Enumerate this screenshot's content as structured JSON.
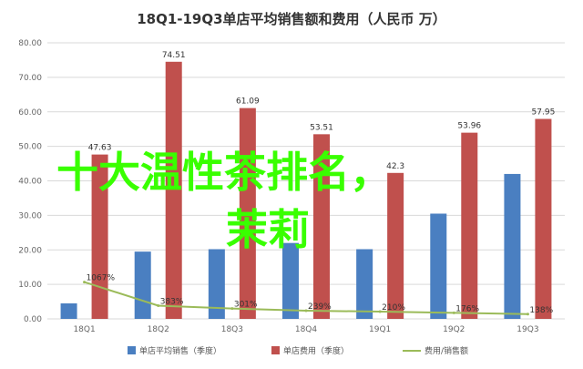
{
  "chart_data": {
    "type": "bar",
    "title": "18Q1-19Q3单店平均销售额和费用（人民币 万）",
    "categories": [
      "18Q1",
      "18Q2",
      "18Q3",
      "18Q4",
      "19Q1",
      "19Q2",
      "19Q3"
    ],
    "ylim": [
      0,
      80
    ],
    "yticks": [
      "0.00",
      "10.00",
      "20.00",
      "30.00",
      "40.00",
      "50.00",
      "60.00",
      "70.00",
      "80.00"
    ],
    "grid": true,
    "legend_position": "bottom",
    "series": [
      {
        "name": "单店平均销售（季度）",
        "type": "bar",
        "color": "#4a7fc1",
        "values": [
          4.5,
          19.5,
          20.2,
          22.0,
          20.2,
          30.5,
          42.0
        ],
        "labels": [
          "",
          "",
          "",
          "",
          "",
          "",
          ""
        ]
      },
      {
        "name": "单店费用（季度）",
        "type": "bar",
        "color": "#c0504d",
        "values": [
          47.63,
          74.51,
          61.09,
          53.51,
          42.3,
          53.96,
          57.95
        ],
        "labels": [
          "47.63",
          "74.51",
          "61.09",
          "53.51",
          "42.3",
          "53.96",
          "57.95"
        ]
      },
      {
        "name": "费用/销售额",
        "type": "line",
        "color": "#9bbb59",
        "values": [
          1067,
          383,
          301,
          239,
          210,
          176,
          138
        ],
        "labels": [
          "1067%",
          "383%",
          "301%",
          "239%",
          "210%",
          "176%",
          "138%"
        ]
      }
    ]
  },
  "overlay": {
    "line1": "十大温性茶排名，",
    "line2": "茉莉"
  }
}
